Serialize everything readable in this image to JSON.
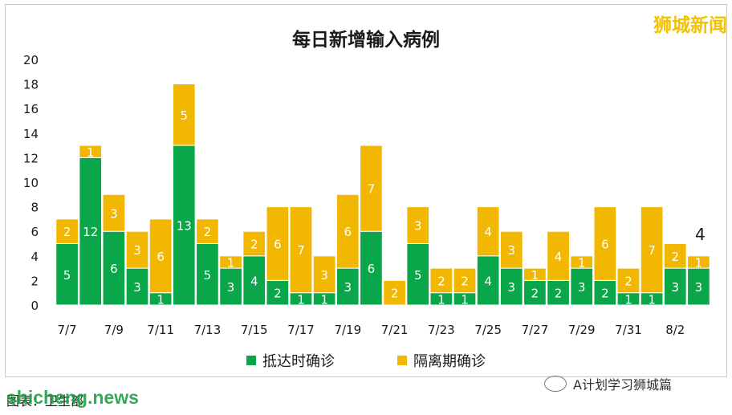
{
  "brand": "狮城新闻",
  "wechat_label": "A计划学习狮城篇",
  "footer_caption": "图表：卫生部",
  "watermark": "shicheng.news",
  "colors": {
    "arrival": "#0aa64a",
    "quarantine": "#f2b700"
  },
  "chart_data": {
    "type": "bar",
    "stacked": true,
    "title": "每日新增输入病例",
    "xlabel": "",
    "ylabel": "",
    "ylim": [
      0,
      20
    ],
    "yticks": [
      0,
      2,
      4,
      6,
      8,
      10,
      12,
      14,
      16,
      18,
      20
    ],
    "grid": false,
    "legend_position": "bottom",
    "categories": [
      "7/7",
      "7/8",
      "7/9",
      "7/10",
      "7/11",
      "7/12",
      "7/13",
      "7/14",
      "7/15",
      "7/16",
      "7/17",
      "7/18",
      "7/19",
      "7/20",
      "7/21",
      "7/22",
      "7/23",
      "7/24",
      "7/25",
      "7/26",
      "7/27",
      "7/28",
      "7/29",
      "7/30",
      "7/31",
      "8/1",
      "8/2",
      "8/3"
    ],
    "xtick_labels": [
      "7/7",
      "",
      "7/9",
      "",
      "7/11",
      "",
      "7/13",
      "",
      "7/15",
      "",
      "7/17",
      "",
      "7/19",
      "",
      "7/21",
      "",
      "7/23",
      "",
      "7/25",
      "",
      "7/27",
      "",
      "7/29",
      "",
      "7/31",
      "",
      "8/2",
      ""
    ],
    "series": [
      {
        "name": "抵达时确诊",
        "values": [
          5,
          12,
          6,
          3,
          1,
          13,
          5,
          3,
          4,
          2,
          1,
          1,
          3,
          6,
          0,
          5,
          1,
          1,
          4,
          3,
          2,
          2,
          3,
          2,
          1,
          1,
          3,
          3
        ]
      },
      {
        "name": "隔离期确诊",
        "values": [
          2,
          1,
          3,
          3,
          6,
          5,
          2,
          1,
          2,
          6,
          7,
          3,
          6,
          7,
          2,
          3,
          2,
          2,
          4,
          3,
          1,
          4,
          1,
          6,
          2,
          7,
          2,
          1
        ]
      }
    ],
    "annotations": [
      {
        "category": "8/3",
        "text": "4"
      }
    ]
  }
}
